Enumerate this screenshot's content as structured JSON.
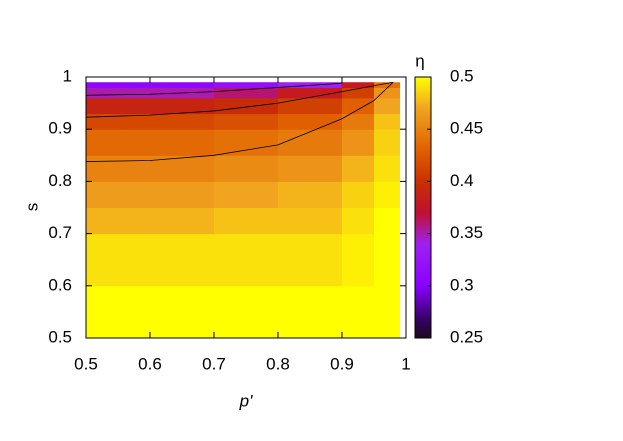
{
  "chart_data": {
    "type": "heatmap",
    "xlabel": "p'",
    "ylabel": "s",
    "colorbar_label": "η",
    "xlim": [
      0.5,
      1
    ],
    "ylim": [
      0.5,
      1
    ],
    "xticks": [
      0.5,
      0.6,
      0.7,
      0.8,
      0.9,
      1
    ],
    "yticks": [
      0.5,
      0.6,
      0.7,
      0.8,
      0.9,
      1
    ],
    "cblim": [
      0.25,
      0.5
    ],
    "cbticks": [
      0.25,
      0.3,
      0.35,
      0.4,
      0.45,
      0.5
    ],
    "palette": [
      {
        "value": 0.25,
        "color": "#1a0a1a"
      },
      {
        "value": 0.27,
        "color": "#3a0070"
      },
      {
        "value": 0.3,
        "color": "#8a00ff"
      },
      {
        "value": 0.34,
        "color": "#a020f0"
      },
      {
        "value": 0.37,
        "color": "#c01030"
      },
      {
        "value": 0.4,
        "color": "#c83000"
      },
      {
        "value": 0.43,
        "color": "#e06000"
      },
      {
        "value": 0.47,
        "color": "#f0a420"
      },
      {
        "value": 0.5,
        "color": "#ffff00"
      }
    ],
    "xbins": [
      0.5,
      0.6,
      0.7,
      0.8,
      0.9,
      0.95,
      0.99
    ],
    "ybins": [
      0.5,
      0.6,
      0.7,
      0.75,
      0.8,
      0.85,
      0.9,
      0.93,
      0.96,
      0.98,
      0.99
    ],
    "z": [
      [
        0.5,
        0.5,
        0.5,
        0.5,
        0.5,
        0.5
      ],
      [
        0.49,
        0.49,
        0.49,
        0.49,
        0.495,
        0.5
      ],
      [
        0.475,
        0.475,
        0.48,
        0.48,
        0.49,
        0.5
      ],
      [
        0.465,
        0.465,
        0.47,
        0.475,
        0.485,
        0.495
      ],
      [
        0.45,
        0.45,
        0.455,
        0.46,
        0.475,
        0.49
      ],
      [
        0.435,
        0.435,
        0.44,
        0.445,
        0.46,
        0.485
      ],
      [
        0.415,
        0.415,
        0.42,
        0.43,
        0.445,
        0.48
      ],
      [
        0.39,
        0.39,
        0.395,
        0.41,
        0.43,
        0.47
      ],
      [
        0.35,
        0.35,
        0.36,
        0.38,
        0.41,
        0.46
      ],
      [
        0.31,
        0.31,
        0.32,
        0.34,
        0.38,
        0.44
      ]
    ],
    "contours": [
      {
        "x": [
          0.5,
          0.6,
          0.7,
          0.8,
          0.9,
          0.95,
          0.98
        ],
        "y": [
          0.838,
          0.84,
          0.85,
          0.87,
          0.92,
          0.955,
          0.99
        ]
      },
      {
        "x": [
          0.5,
          0.6,
          0.7,
          0.8,
          0.9,
          0.98
        ],
        "y": [
          0.923,
          0.927,
          0.935,
          0.95,
          0.972,
          0.99
        ]
      },
      {
        "x": [
          0.5,
          0.6,
          0.7,
          0.8,
          0.9
        ],
        "y": [
          0.965,
          0.967,
          0.972,
          0.98,
          0.988
        ]
      }
    ],
    "contour_color": "#000000"
  }
}
